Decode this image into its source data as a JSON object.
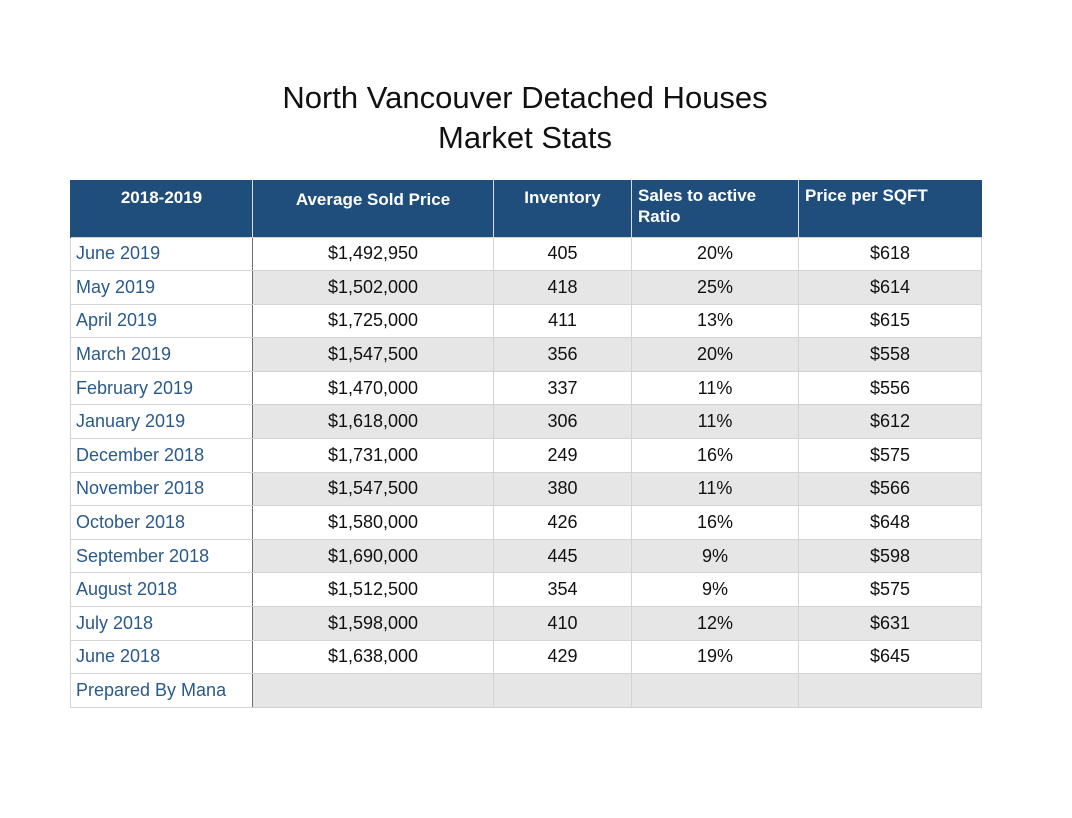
{
  "chart_data": {
    "type": "table",
    "title": "North Vancouver Detached Houses",
    "subtitle": "Market Stats",
    "columns": [
      "2018-2019",
      "Average Sold Price",
      "Inventory",
      "Sales to active Ratio",
      "Price per SQFT"
    ],
    "rows": [
      {
        "month": "June 2019",
        "avg_price": "$1,492,950",
        "inventory": "405",
        "ratio": "20%",
        "ppsf": "$618"
      },
      {
        "month": "May 2019",
        "avg_price": "$1,502,000",
        "inventory": "418",
        "ratio": "25%",
        "ppsf": "$614"
      },
      {
        "month": "April 2019",
        "avg_price": "$1,725,000",
        "inventory": "411",
        "ratio": "13%",
        "ppsf": "$615"
      },
      {
        "month": "March 2019",
        "avg_price": "$1,547,500",
        "inventory": "356",
        "ratio": "20%",
        "ppsf": "$558"
      },
      {
        "month": "February 2019",
        "avg_price": "$1,470,000",
        "inventory": "337",
        "ratio": "11%",
        "ppsf": "$556"
      },
      {
        "month": "January 2019",
        "avg_price": "$1,618,000",
        "inventory": "306",
        "ratio": "11%",
        "ppsf": "$612"
      },
      {
        "month": "December 2018",
        "avg_price": "$1,731,000",
        "inventory": "249",
        "ratio": "16%",
        "ppsf": "$575"
      },
      {
        "month": "November 2018",
        "avg_price": "$1,547,500",
        "inventory": "380",
        "ratio": "11%",
        "ppsf": "$566"
      },
      {
        "month": "October 2018",
        "avg_price": "$1,580,000",
        "inventory": "426",
        "ratio": "16%",
        "ppsf": "$648"
      },
      {
        "month": "September 2018",
        "avg_price": "$1,690,000",
        "inventory": "445",
        "ratio": "9%",
        "ppsf": "$598"
      },
      {
        "month": "August 2018",
        "avg_price": "$1,512,500",
        "inventory": "354",
        "ratio": "9%",
        "ppsf": "$575"
      },
      {
        "month": "July 2018",
        "avg_price": "$1,598,000",
        "inventory": "410",
        "ratio": "12%",
        "ppsf": "$631"
      },
      {
        "month": "June 2018",
        "avg_price": "$1,638,000",
        "inventory": "429",
        "ratio": "19%",
        "ppsf": "$645"
      }
    ],
    "footer": "Prepared By Mana",
    "colors": {
      "header_bg": "#1f4e7d",
      "header_text": "#ffffff",
      "month_text": "#2a5a8c",
      "alt_row_bg": "#e6e6e6"
    }
  }
}
